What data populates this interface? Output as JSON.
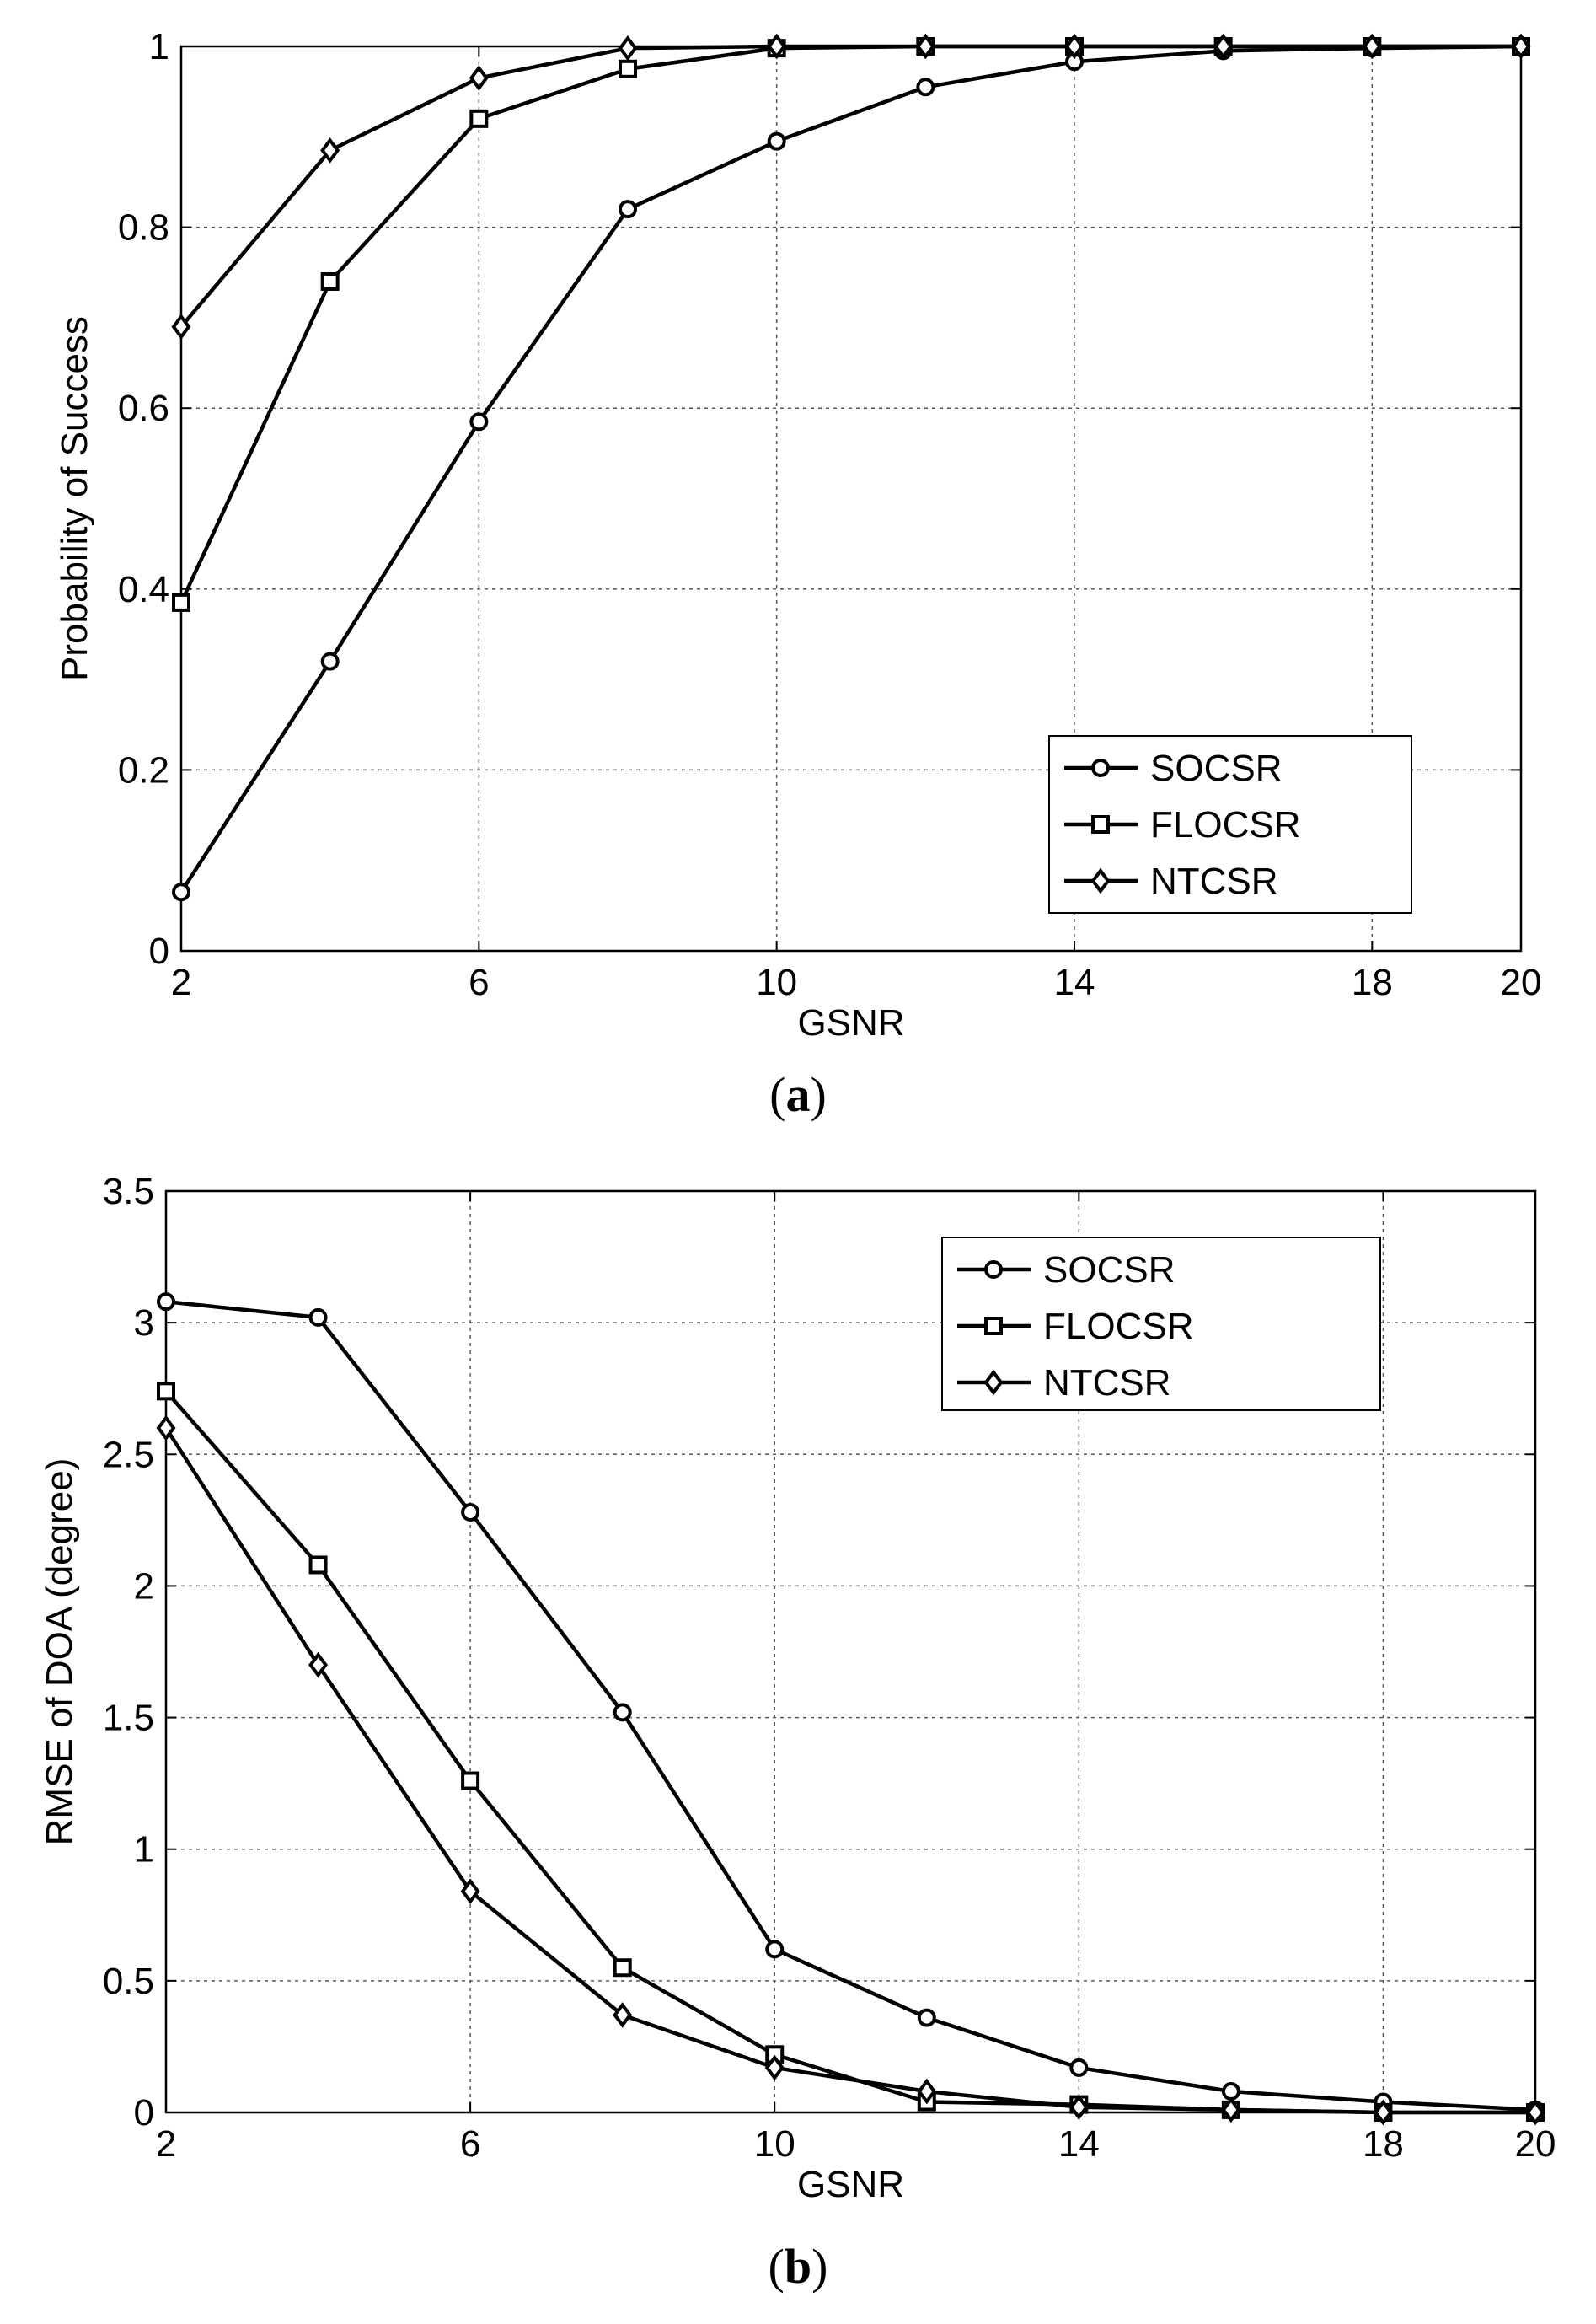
{
  "chart_data": [
    {
      "type": "line",
      "panel": "a",
      "caption": "a",
      "xlabel": "GSNR",
      "ylabel": "Probability of Success",
      "xlim": [
        2,
        20
      ],
      "ylim": [
        0,
        1
      ],
      "xticks": [
        2,
        6,
        10,
        14,
        18,
        20
      ],
      "xtick_labels": [
        "2",
        "6",
        "10",
        "14",
        "18",
        "20"
      ],
      "yticks": [
        0,
        0.2,
        0.4,
        0.6,
        0.8,
        1
      ],
      "ytick_labels": [
        "0",
        "0.2",
        "0.4",
        "0.6",
        "0.8",
        "1"
      ],
      "grid": true,
      "legend_position": "bottom-right",
      "x": [
        2,
        4,
        6,
        8,
        10,
        12,
        14,
        16,
        18,
        20
      ],
      "series": [
        {
          "name": "SOCSR",
          "marker": "circle",
          "values": [
            0.065,
            0.32,
            0.585,
            0.82,
            0.895,
            0.955,
            0.983,
            0.995,
            0.998,
            1.0
          ]
        },
        {
          "name": "FLOCSR",
          "marker": "square",
          "values": [
            0.385,
            0.74,
            0.92,
            0.975,
            0.998,
            1.0,
            1.0,
            1.0,
            1.0,
            1.0
          ]
        },
        {
          "name": "NTCSR",
          "marker": "diamond",
          "values": [
            0.69,
            0.885,
            0.965,
            0.998,
            1.0,
            1.0,
            1.0,
            1.0,
            1.0,
            1.0
          ]
        }
      ]
    },
    {
      "type": "line",
      "panel": "b",
      "caption": "b",
      "xlabel": "GSNR",
      "ylabel": "RMSE of DOA (degree)",
      "xlim": [
        2,
        20
      ],
      "ylim": [
        0,
        3.5
      ],
      "xticks": [
        2,
        6,
        10,
        14,
        18,
        20
      ],
      "xtick_labels": [
        "2",
        "6",
        "10",
        "14",
        "18",
        "20"
      ],
      "yticks": [
        0,
        0.5,
        1,
        1.5,
        2,
        2.5,
        3,
        3.5
      ],
      "ytick_labels": [
        "0",
        "0.5",
        "1",
        "1.5",
        "2",
        "2.5",
        "3",
        "3.5"
      ],
      "grid": true,
      "legend_position": "top-right",
      "x": [
        2,
        4,
        6,
        8,
        10,
        12,
        14,
        16,
        18,
        20
      ],
      "series": [
        {
          "name": "SOCSR",
          "marker": "circle",
          "values": [
            3.08,
            3.02,
            2.28,
            1.52,
            0.62,
            0.36,
            0.17,
            0.08,
            0.04,
            0.01
          ]
        },
        {
          "name": "FLOCSR",
          "marker": "square",
          "values": [
            2.74,
            2.08,
            1.26,
            0.55,
            0.22,
            0.04,
            0.03,
            0.01,
            0.0,
            0.0
          ]
        },
        {
          "name": "NTCSR",
          "marker": "diamond",
          "values": [
            2.6,
            1.7,
            0.84,
            0.37,
            0.17,
            0.08,
            0.02,
            0.01,
            0.0,
            0.0
          ]
        }
      ]
    }
  ]
}
